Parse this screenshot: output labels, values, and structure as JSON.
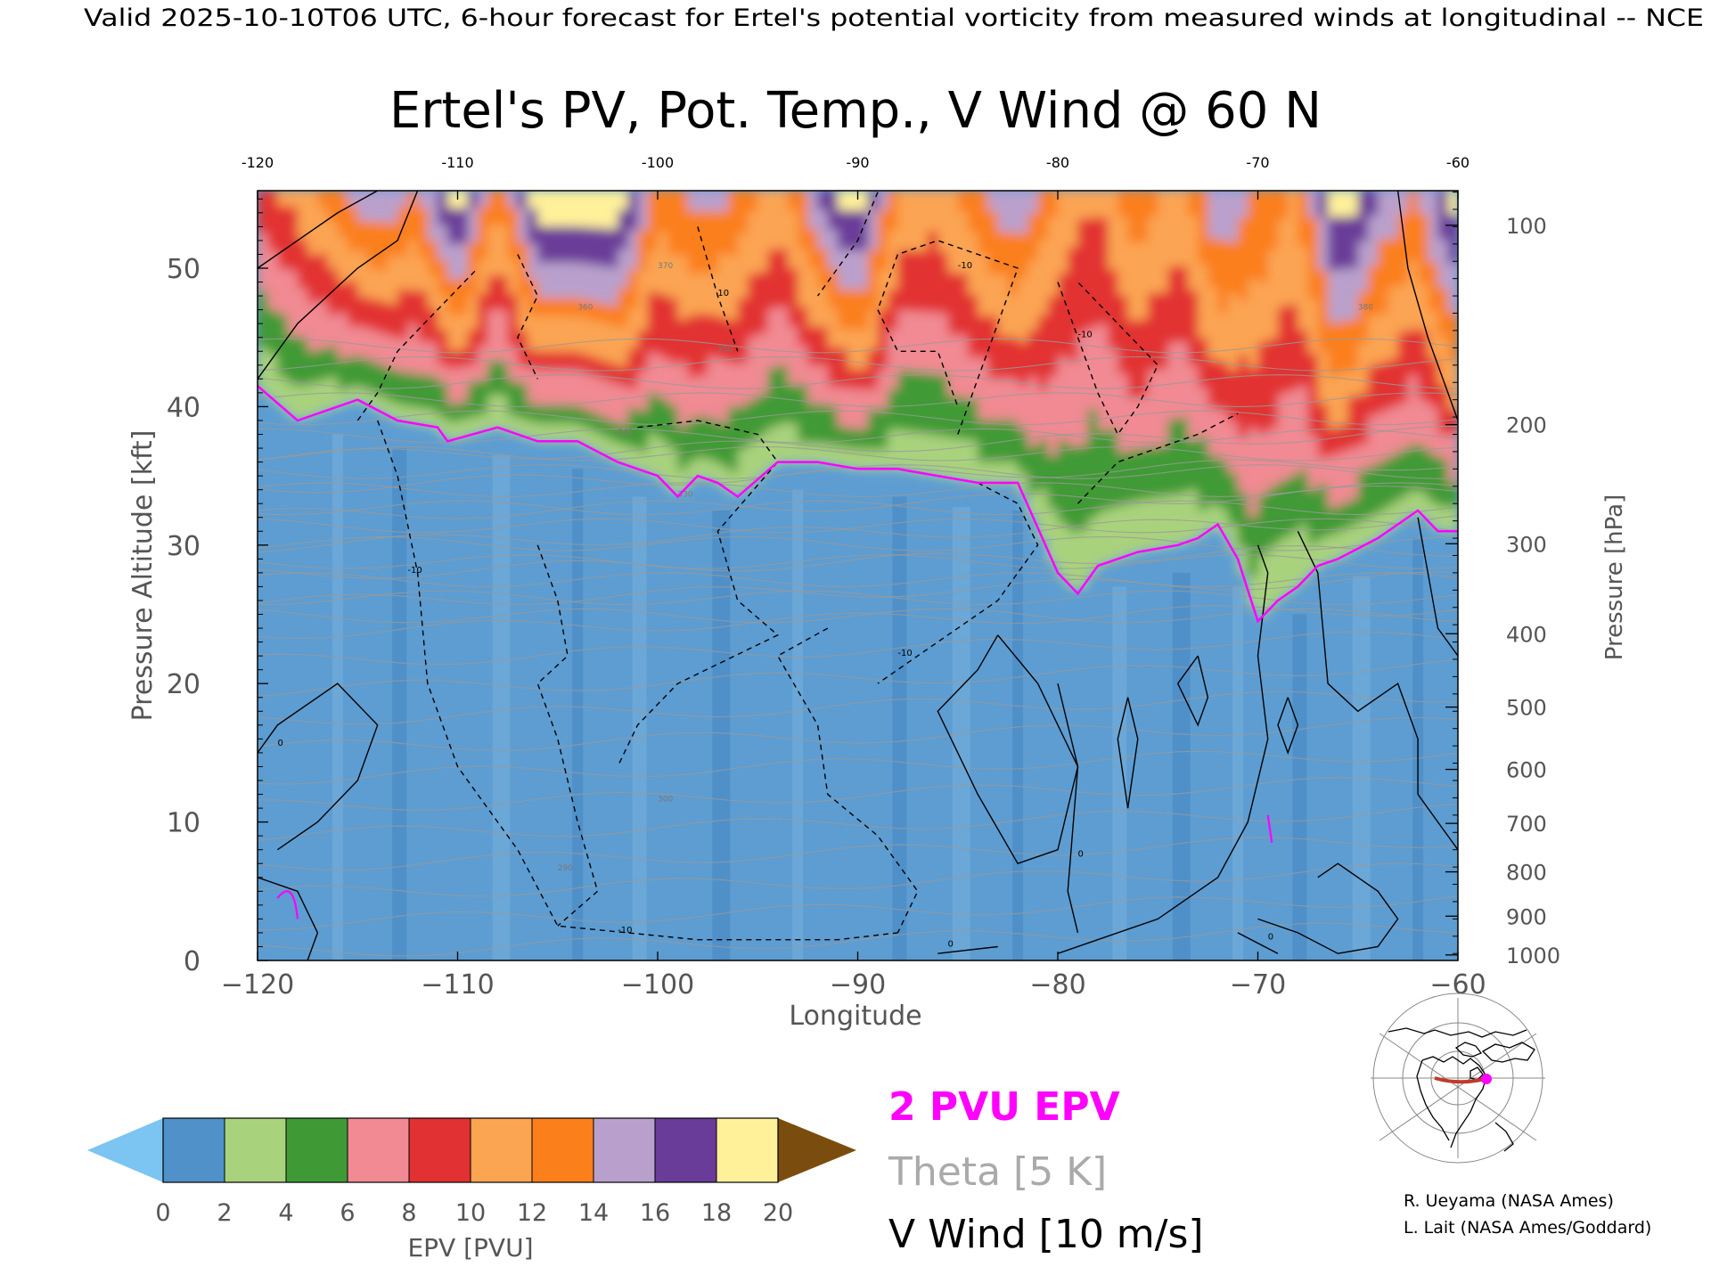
{
  "header": {
    "valid_line": "Valid 2025-10-10T06 UTC, 6-hour forecast for Ertel's potential vorticity from measured winds at longitudinal -- NCE"
  },
  "chart_data": {
    "type": "heatmap",
    "title": "Ertel's PV, Pot. Temp., V Wind @ 60 N",
    "xlabel": "Longitude",
    "ylabel": "Pressure Altitude [kft]",
    "ylabel_right": "Pressure [hPa]",
    "xlim": [
      -120,
      -60
    ],
    "ylim": [
      0,
      55.6
    ],
    "x_ticks": [
      -120,
      -110,
      -100,
      -90,
      -80,
      -70,
      -60
    ],
    "x_tick_labels": [
      "−120",
      "−110",
      "−100",
      "−90",
      "−80",
      "−70",
      "−60"
    ],
    "top_x_tick_labels": [
      "-120",
      "-110",
      "-100",
      "-90",
      "-80",
      "-70",
      "-60"
    ],
    "y_ticks": [
      0,
      10,
      20,
      30,
      40,
      50
    ],
    "y_tick_labels": [
      "0",
      "10",
      "20",
      "30",
      "40",
      "50"
    ],
    "pressure_ticks": [
      {
        "hpa": 100,
        "kft": 53.1,
        "label": "100"
      },
      {
        "hpa": 200,
        "kft": 38.7,
        "label": "200"
      },
      {
        "hpa": 300,
        "kft": 30.1,
        "label": "300"
      },
      {
        "hpa": 400,
        "kft": 23.6,
        "label": "400"
      },
      {
        "hpa": 500,
        "kft": 18.3,
        "label": "500"
      },
      {
        "hpa": 600,
        "kft": 13.8,
        "label": "600"
      },
      {
        "hpa": 700,
        "kft": 9.9,
        "label": "700"
      },
      {
        "hpa": 800,
        "kft": 6.4,
        "label": "800"
      },
      {
        "hpa": 900,
        "kft": 3.2,
        "label": "900"
      },
      {
        "hpa": 1000,
        "kft": 0.4,
        "label": "1000"
      }
    ],
    "tropopause_2pvu": {
      "name": "2 PVU EPV",
      "x": [
        -120,
        -118,
        -116,
        -115,
        -113,
        -111,
        -110.5,
        -108,
        -106,
        -104,
        -102,
        -100,
        -99,
        -98,
        -97,
        -96,
        -94,
        -92,
        -90,
        -88,
        -86,
        -84,
        -82,
        -80,
        -79,
        -78,
        -76,
        -74,
        -73,
        -72,
        -71,
        -70,
        -69,
        -68,
        -67,
        -66,
        -64,
        -62,
        -61,
        -60
      ],
      "y": [
        41.5,
        39,
        40,
        40.5,
        39,
        38.5,
        37.5,
        38.5,
        37.5,
        37.5,
        36,
        35,
        33.5,
        35,
        34.5,
        33.5,
        36,
        36,
        35.5,
        35.5,
        35,
        34.5,
        34.5,
        28,
        26.5,
        28.5,
        29.5,
        30,
        30.5,
        31.5,
        29,
        24.5,
        26,
        27,
        28.5,
        29,
        30.5,
        32.5,
        31,
        31
      ]
    },
    "epv_columns": {
      "x": [
        -120,
        -118,
        -116,
        -114,
        -112,
        -110,
        -108,
        -106,
        -104,
        -102,
        -100,
        -98,
        -96,
        -94,
        -92,
        -90,
        -88,
        -86,
        -84,
        -82,
        -80,
        -78,
        -76,
        -74,
        -72,
        -70,
        -68,
        -66,
        -64,
        -62,
        -60
      ],
      "stratosphere_top_pvu": [
        9,
        11,
        14,
        16,
        14,
        20,
        12,
        20,
        20,
        20,
        13,
        15,
        14,
        11,
        16,
        20,
        12,
        11,
        14,
        16,
        12,
        10,
        14,
        11,
        16,
        14,
        12,
        20,
        16,
        14,
        20
      ]
    },
    "colorbar": {
      "label": "EPV [PVU]",
      "ticks": [
        "0",
        "2",
        "4",
        "6",
        "8",
        "10",
        "12",
        "14",
        "16",
        "18",
        "20"
      ],
      "colors": [
        "#4f91c8",
        "#a9d27d",
        "#3f9a35",
        "#f18a93",
        "#e23133",
        "#fba452",
        "#fb7f1b",
        "#b9a0cc",
        "#6a3c99",
        "#fff19a"
      ],
      "under_color": "#7cc4f2",
      "over_color": "#7a4d0e"
    },
    "theta_contours": {
      "interval_k": 5,
      "labels": [
        "290",
        "300",
        "330",
        "340",
        "350",
        "360",
        "370",
        "380"
      ]
    },
    "v_wind_contours": {
      "interval_ms": 10,
      "labels": [
        "-10",
        "0",
        "10"
      ]
    }
  },
  "legend": {
    "pv": "2 PVU EPV",
    "theta": "Theta [5 K]",
    "wind": "V Wind [10 m/s]",
    "pv_color": "#ff00ff",
    "theta_color": "#aaaaaa"
  },
  "credits": {
    "line1": "R. Ueyama (NASA Ames)",
    "line2": "L. Lait (NASA Ames/Goddard)"
  },
  "locator_map": {
    "marker_color": "#ff00ff",
    "section_color": "#c0392b"
  }
}
